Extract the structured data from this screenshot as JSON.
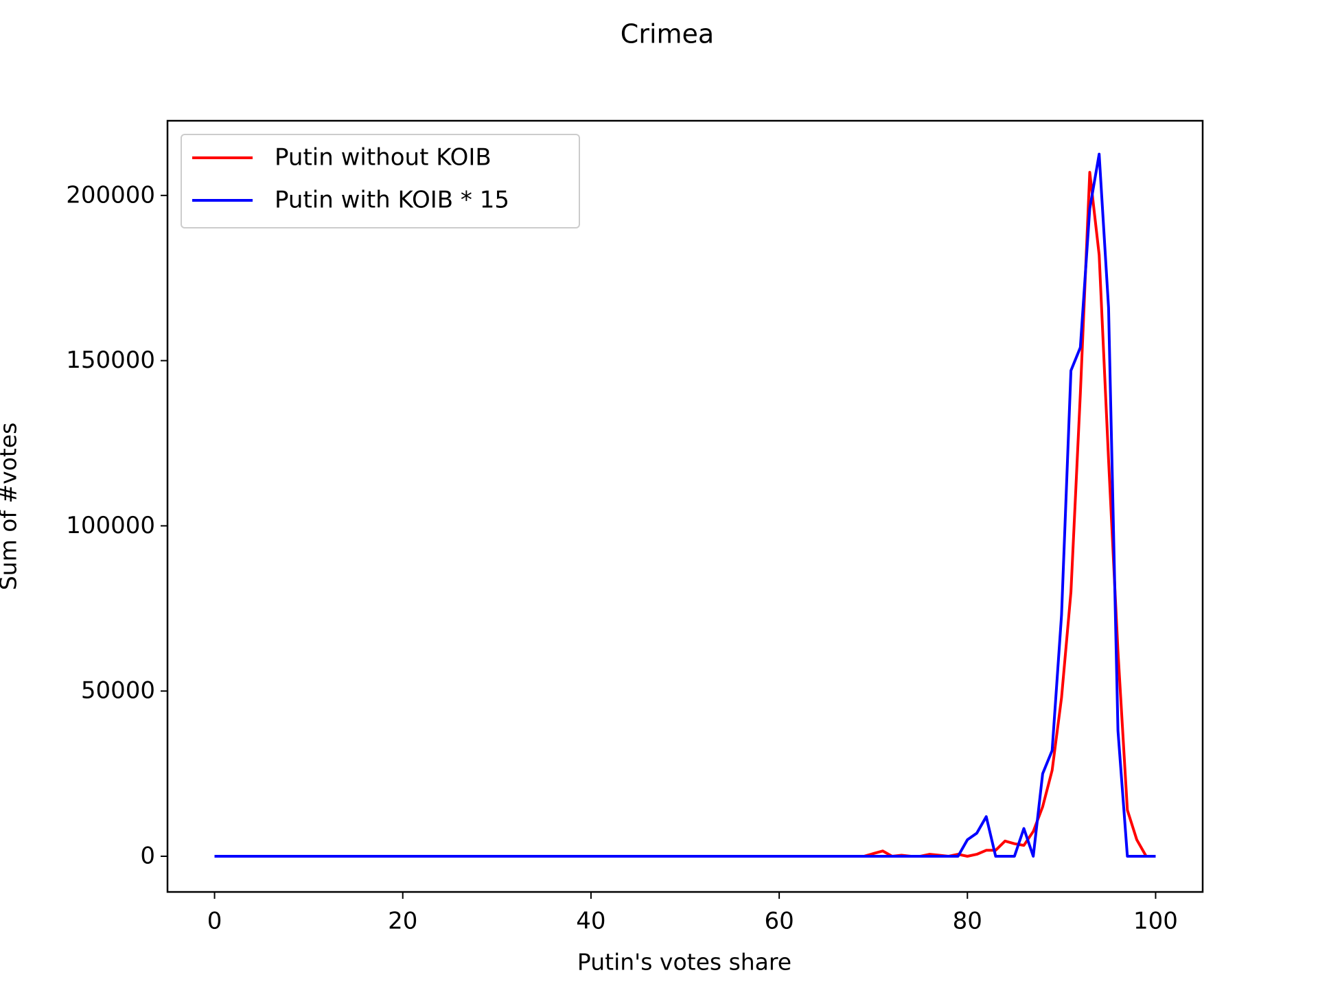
{
  "chart_data": {
    "type": "line",
    "title": "Crimea",
    "xlabel": "Putin's votes share",
    "ylabel": "Sum of #votes",
    "xlim": [
      -5,
      105
    ],
    "ylim": [
      -10800,
      222600
    ],
    "x_ticks": [
      0,
      20,
      40,
      60,
      80,
      100
    ],
    "y_ticks": [
      0,
      50000,
      100000,
      150000,
      200000
    ],
    "legend_position": "top-left",
    "grid": false,
    "series": [
      {
        "name": "Putin without KOIB",
        "color": "#ff0000",
        "points": [
          [
            0,
            0
          ],
          [
            68,
            0
          ],
          [
            69,
            0
          ],
          [
            70,
            800
          ],
          [
            71,
            1600
          ],
          [
            72,
            0
          ],
          [
            73,
            300
          ],
          [
            74,
            0
          ],
          [
            75,
            0
          ],
          [
            76,
            600
          ],
          [
            77,
            300
          ],
          [
            78,
            0
          ],
          [
            79,
            600
          ],
          [
            80,
            0
          ],
          [
            81,
            600
          ],
          [
            82,
            1800
          ],
          [
            83,
            1800
          ],
          [
            84,
            4600
          ],
          [
            85,
            3800
          ],
          [
            86,
            3300
          ],
          [
            87,
            7500
          ],
          [
            88,
            15000
          ],
          [
            89,
            26000
          ],
          [
            90,
            48000
          ],
          [
            91,
            80000
          ],
          [
            92,
            140000
          ],
          [
            93,
            207000
          ],
          [
            94,
            182000
          ],
          [
            95,
            120000
          ],
          [
            96,
            62000
          ],
          [
            97,
            14000
          ],
          [
            98,
            5000
          ],
          [
            99,
            0
          ],
          [
            100,
            0
          ]
        ]
      },
      {
        "name": "Putin with KOIB * 15",
        "color": "#0000ff",
        "points": [
          [
            0,
            0
          ],
          [
            78,
            0
          ],
          [
            79,
            0
          ],
          [
            80,
            5000
          ],
          [
            81,
            7000
          ],
          [
            82,
            12000
          ],
          [
            83,
            0
          ],
          [
            84,
            0
          ],
          [
            85,
            0
          ],
          [
            86,
            8400
          ],
          [
            87,
            0
          ],
          [
            88,
            25000
          ],
          [
            89,
            32000
          ],
          [
            90,
            73000
          ],
          [
            91,
            147000
          ],
          [
            92,
            154000
          ],
          [
            93,
            196000
          ],
          [
            94,
            212500
          ],
          [
            95,
            166000
          ],
          [
            96,
            38000
          ],
          [
            97,
            0
          ],
          [
            98,
            0
          ],
          [
            99,
            0
          ],
          [
            100,
            0
          ]
        ]
      }
    ]
  }
}
